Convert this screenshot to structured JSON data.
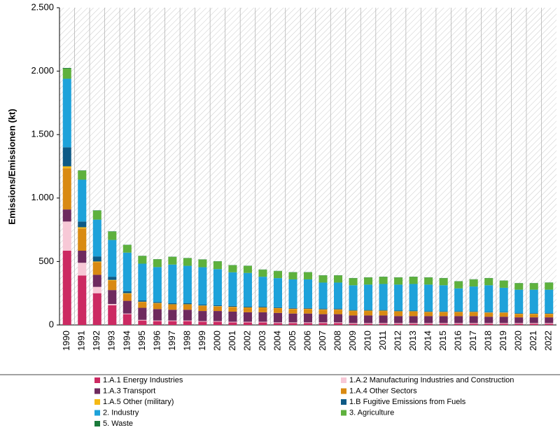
{
  "chart_data": {
    "type": "stacked_bar",
    "y_label": "Emissions/Emissionen (kt)",
    "categories": [
      "1990",
      "1991",
      "1992",
      "1993",
      "1994",
      "1995",
      "1996",
      "1997",
      "1998",
      "1999",
      "2000",
      "2001",
      "2002",
      "2003",
      "2004",
      "2005",
      "2006",
      "2007",
      "2008",
      "2009",
      "2010",
      "2011",
      "2012",
      "2013",
      "2014",
      "2015",
      "2016",
      "2017",
      "2018",
      "2019",
      "2020",
      "2021",
      "2022"
    ],
    "series": [
      {
        "name": "1.A.1 Energy Industries",
        "color": "#cc2a62",
        "values": [
          585,
          390,
          250,
          155,
          85,
          35,
          30,
          30,
          30,
          25,
          25,
          20,
          20,
          20,
          15,
          15,
          15,
          15,
          15,
          10,
          10,
          10,
          10,
          10,
          10,
          10,
          10,
          10,
          10,
          10,
          10,
          10,
          10
        ]
      },
      {
        "name": "1.A.2 Manufacturing Industries and Construction",
        "color": "#f7c8d6",
        "values": [
          230,
          100,
          50,
          10,
          5,
          5,
          5,
          5,
          5,
          5,
          5,
          5,
          5,
          5,
          5,
          5,
          5,
          5,
          5,
          5,
          5,
          5,
          5,
          5,
          5,
          5,
          5,
          5,
          5,
          5,
          5,
          5,
          5
        ]
      },
      {
        "name": "1.A.3 Transport",
        "color": "#6e2a5e",
        "values": [
          95,
          95,
          95,
          110,
          100,
          95,
          90,
          85,
          85,
          80,
          80,
          80,
          75,
          75,
          75,
          70,
          70,
          65,
          65,
          60,
          60,
          60,
          55,
          55,
          55,
          55,
          55,
          55,
          50,
          50,
          45,
          45,
          45
        ]
      },
      {
        "name": "1.A.4 Other Sectors",
        "color": "#d98a12",
        "values": [
          325,
          175,
          100,
          75,
          55,
          45,
          45,
          40,
          40,
          40,
          35,
          35,
          35,
          35,
          35,
          35,
          35,
          35,
          35,
          35,
          35,
          35,
          35,
          35,
          30,
          30,
          30,
          30,
          30,
          30,
          25,
          25,
          25
        ]
      },
      {
        "name": "1.A.5 Other (military)",
        "color": "#f5b915",
        "values": [
          15,
          10,
          5,
          5,
          5,
          3,
          3,
          3,
          3,
          3,
          3,
          3,
          3,
          3,
          3,
          3,
          3,
          3,
          3,
          3,
          3,
          3,
          3,
          3,
          3,
          3,
          3,
          3,
          3,
          3,
          3,
          3,
          3
        ]
      },
      {
        "name": "1.B Fugitive Emissions from Fuels",
        "color": "#0e5a86",
        "values": [
          150,
          45,
          40,
          25,
          15,
          10,
          8,
          8,
          8,
          7,
          7,
          7,
          7,
          7,
          6,
          6,
          6,
          6,
          6,
          5,
          5,
          5,
          5,
          5,
          5,
          5,
          5,
          5,
          5,
          5,
          5,
          5,
          5
        ]
      },
      {
        "name": "2. Industry",
        "color": "#1ea2da",
        "values": [
          540,
          330,
          290,
          290,
          305,
          290,
          275,
          305,
          295,
          295,
          285,
          265,
          265,
          235,
          230,
          225,
          225,
          205,
          205,
          195,
          200,
          205,
          205,
          210,
          210,
          205,
          180,
          195,
          210,
          190,
          185,
          185,
          185
        ]
      },
      {
        "name": "3. Agriculture",
        "color": "#5eb13d",
        "values": [
          80,
          70,
          70,
          65,
          60,
          60,
          60,
          60,
          60,
          60,
          60,
          55,
          55,
          55,
          55,
          55,
          55,
          55,
          55,
          55,
          55,
          55,
          55,
          55,
          55,
          55,
          55,
          55,
          55,
          55,
          50,
          50,
          55
        ]
      },
      {
        "name": "5. Waste",
        "color": "#1a7a3a",
        "values": [
          5,
          3,
          3,
          3,
          2,
          2,
          2,
          2,
          2,
          2,
          2,
          2,
          2,
          2,
          2,
          2,
          2,
          2,
          2,
          2,
          2,
          2,
          2,
          2,
          2,
          2,
          2,
          2,
          2,
          2,
          2,
          2,
          2
        ]
      }
    ],
    "ylim": [
      0,
      2500
    ],
    "yticks": [
      0,
      500,
      {
        "value": 1000,
        "label": "1.000"
      },
      {
        "value": 1500,
        "label": "1.500"
      },
      {
        "value": 2000,
        "label": "2.000"
      },
      {
        "value": 2500,
        "label": "2.500"
      }
    ],
    "grid": false
  }
}
